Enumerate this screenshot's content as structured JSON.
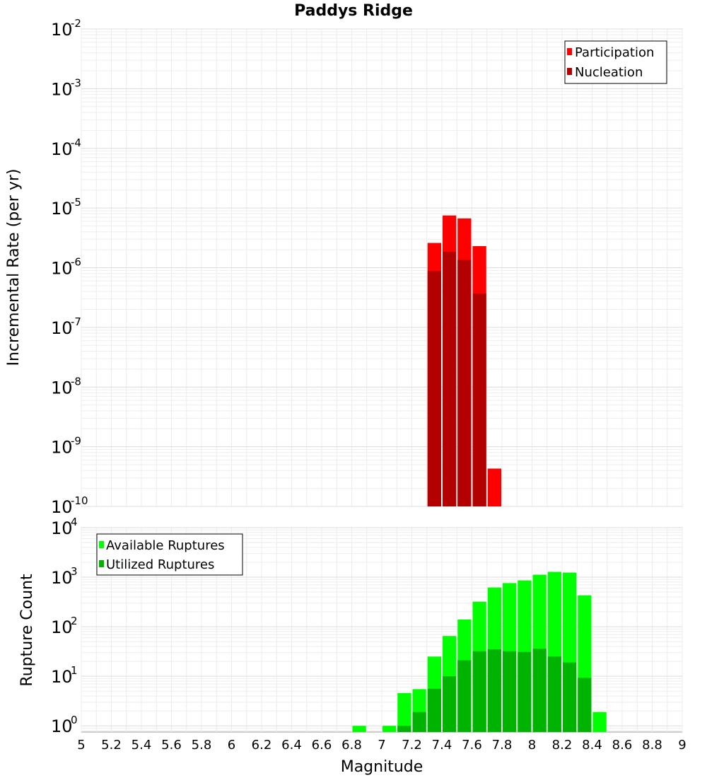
{
  "chart_data": [
    {
      "type": "bar",
      "scale": "log",
      "title": "Paddys Ridge",
      "xlabel": "",
      "ylabel": "Incremental Rate (per yr)",
      "xlim": [
        5,
        9
      ],
      "ylim": [
        1e-10,
        0.01
      ],
      "bin_width": 0.1,
      "y_ticks": [
        {
          "value": 1e-10,
          "base": "10",
          "exp": "-10"
        },
        {
          "value": 1e-09,
          "base": "10",
          "exp": "-9"
        },
        {
          "value": 1e-08,
          "base": "10",
          "exp": "-8"
        },
        {
          "value": 1e-07,
          "base": "10",
          "exp": "-7"
        },
        {
          "value": 1e-06,
          "base": "10",
          "exp": "-6"
        },
        {
          "value": 1e-05,
          "base": "10",
          "exp": "-5"
        },
        {
          "value": 0.0001,
          "base": "10",
          "exp": "-4"
        },
        {
          "value": 0.001,
          "base": "10",
          "exp": "-3"
        },
        {
          "value": 0.01,
          "base": "10",
          "exp": "-2"
        }
      ],
      "legend_position": "top-right",
      "series": [
        {
          "name": "Participation",
          "color": "#ff0000",
          "points": [
            {
              "x": 7.35,
              "y": 2.6e-06
            },
            {
              "x": 7.45,
              "y": 7.5e-06
            },
            {
              "x": 7.55,
              "y": 6.7e-06
            },
            {
              "x": 7.65,
              "y": 2.3e-06
            },
            {
              "x": 7.75,
              "y": 4.3e-10
            }
          ]
        },
        {
          "name": "Nucleation",
          "color": "#b30000",
          "points": [
            {
              "x": 7.35,
              "y": 8.8e-07
            },
            {
              "x": 7.45,
              "y": 1.85e-06
            },
            {
              "x": 7.55,
              "y": 1.35e-06
            },
            {
              "x": 7.65,
              "y": 3.7e-07
            }
          ]
        }
      ]
    },
    {
      "type": "bar",
      "scale": "log",
      "title": "",
      "xlabel": "Magnitude",
      "ylabel": "Rupture Count",
      "xlim": [
        5,
        9
      ],
      "ylim": [
        0.75,
        10000
      ],
      "bin_width": 0.1,
      "x_ticks": [
        "5",
        "5.2",
        "5.4",
        "5.6",
        "5.8",
        "6",
        "6.2",
        "6.4",
        "6.6",
        "6.8",
        "7",
        "7.2",
        "7.4",
        "7.6",
        "7.8",
        "8",
        "8.2",
        "8.4",
        "8.6",
        "8.8",
        "9"
      ],
      "y_ticks": [
        {
          "value": 1,
          "base": "10",
          "exp": "0"
        },
        {
          "value": 10,
          "base": "10",
          "exp": "1"
        },
        {
          "value": 100,
          "base": "10",
          "exp": "2"
        },
        {
          "value": 1000,
          "base": "10",
          "exp": "3"
        },
        {
          "value": 10000,
          "base": "10",
          "exp": "4"
        }
      ],
      "legend_position": "top-left",
      "series": [
        {
          "name": "Available Ruptures",
          "color": "#00ff00",
          "points": [
            {
              "x": 6.85,
              "y": 1
            },
            {
              "x": 7.05,
              "y": 1
            },
            {
              "x": 7.15,
              "y": 4.6
            },
            {
              "x": 7.25,
              "y": 5.5
            },
            {
              "x": 7.35,
              "y": 25
            },
            {
              "x": 7.45,
              "y": 65
            },
            {
              "x": 7.55,
              "y": 140
            },
            {
              "x": 7.65,
              "y": 320
            },
            {
              "x": 7.75,
              "y": 620
            },
            {
              "x": 7.85,
              "y": 760
            },
            {
              "x": 7.95,
              "y": 860
            },
            {
              "x": 8.05,
              "y": 1120
            },
            {
              "x": 8.15,
              "y": 1280
            },
            {
              "x": 8.25,
              "y": 1240
            },
            {
              "x": 8.35,
              "y": 430
            },
            {
              "x": 8.45,
              "y": 1.9
            }
          ]
        },
        {
          "name": "Utilized Ruptures",
          "color": "#00b300",
          "points": [
            {
              "x": 7.15,
              "y": 1
            },
            {
              "x": 7.25,
              "y": 1.9
            },
            {
              "x": 7.35,
              "y": 5.6
            },
            {
              "x": 7.45,
              "y": 10
            },
            {
              "x": 7.55,
              "y": 21
            },
            {
              "x": 7.65,
              "y": 32
            },
            {
              "x": 7.75,
              "y": 35
            },
            {
              "x": 7.85,
              "y": 32
            },
            {
              "x": 7.95,
              "y": 31
            },
            {
              "x": 8.05,
              "y": 36
            },
            {
              "x": 8.15,
              "y": 25
            },
            {
              "x": 8.25,
              "y": 19
            },
            {
              "x": 8.35,
              "y": 9.3
            }
          ]
        }
      ]
    }
  ]
}
